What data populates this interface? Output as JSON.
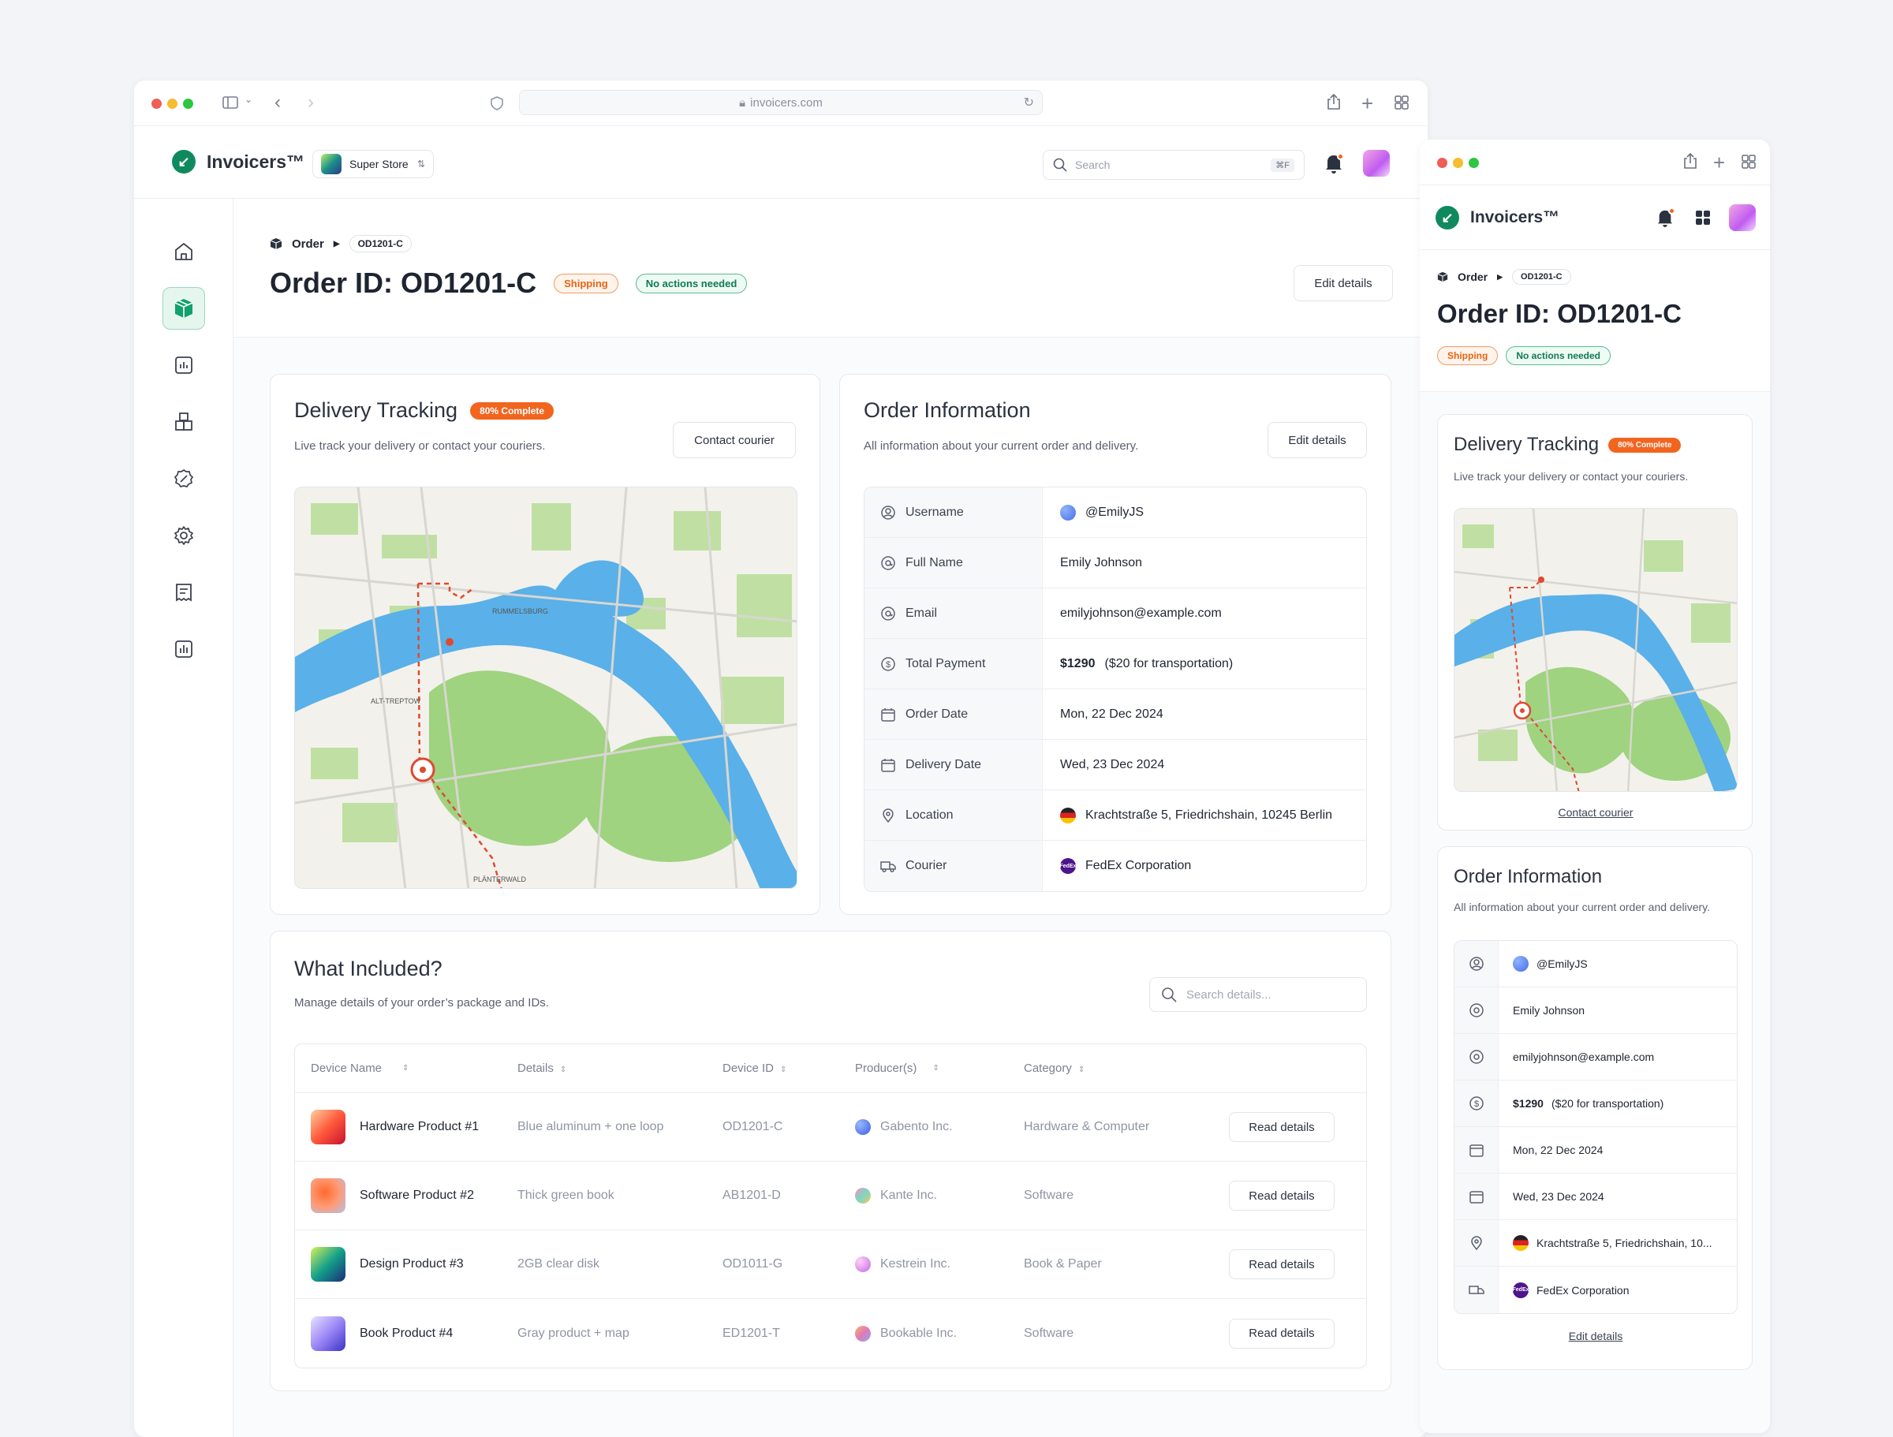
{
  "browser": {
    "url": "invoicers.com"
  },
  "app": {
    "name": "Invoicers™",
    "store": "Super Store"
  },
  "search": {
    "placeholder": "Search",
    "shortcut": "⌘F"
  },
  "breadcrumb": {
    "section": "Order",
    "id": "OD1201-C"
  },
  "order": {
    "title": "Order ID: OD1201-C",
    "status_shipping": "Shipping",
    "status_actions": "No actions needed",
    "edit_label": "Edit details"
  },
  "tracking": {
    "title": "Delivery Tracking",
    "progress_badge": "80% Complete",
    "progress": 0.8,
    "subtitle": "Live track your delivery or contact your couriers.",
    "contact_label": "Contact courier",
    "map_labels": [
      "RUMMELSBURG",
      "ALT-TREPTOW",
      "PLÄNTERWALD"
    ]
  },
  "info": {
    "title": "Order Information",
    "subtitle": "All information about your current order and delivery.",
    "edit_label": "Edit details",
    "rows": [
      {
        "label": "Username",
        "value": "@EmilyJS",
        "icon": "user-circle-icon"
      },
      {
        "label": "Full Name",
        "value": "Emily Johnson",
        "icon": "at-icon"
      },
      {
        "label": "Email",
        "value": "emilyjohnson@example.com",
        "icon": "at-icon"
      },
      {
        "label": "Total Payment",
        "value": "$1290",
        "extra": "($20 for transportation)",
        "icon": "dollar-icon"
      },
      {
        "label": "Order Date",
        "value": "Mon, 22 Dec 2024",
        "icon": "calendar-icon"
      },
      {
        "label": "Delivery Date",
        "value": "Wed, 23 Dec 2024",
        "icon": "calendar-icon"
      },
      {
        "label": "Location",
        "value": "Krachtstraße 5, Friedrichshain, 10245 Berlin",
        "short": "Krachtstraße 5, Friedrichshain, 10...",
        "icon": "pin-icon"
      },
      {
        "label": "Courier",
        "value": "FedEx Corporation",
        "icon": "truck-icon"
      }
    ]
  },
  "included": {
    "title": "What Included?",
    "subtitle": "Manage details of your order’s package and IDs.",
    "search_placeholder": "Search details...",
    "columns": [
      "Device Name",
      "Details",
      "Device ID",
      "Producer(s)",
      "Category"
    ],
    "rows": [
      {
        "name": "Hardware Product #1",
        "details": "Blue aluminum + one loop",
        "id": "OD1201-C",
        "producer": "Gabento Inc.",
        "category": "Hardware & Computer",
        "action": "Read details"
      },
      {
        "name": "Software Product #2",
        "details": "Thick green book",
        "id": "AB1201-D",
        "producer": "Kante Inc.",
        "category": "Software",
        "action": "Read details"
      },
      {
        "name": "Design Product #3",
        "details": "2GB clear disk",
        "id": "OD1011-G",
        "producer": "Kestrein Inc.",
        "category": "Book & Paper",
        "action": "Read details"
      },
      {
        "name": "Book Product #4",
        "details": "Gray product + map",
        "id": "ED1201-T",
        "producer": "Bookable Inc.",
        "category": "Software",
        "action": "Read details"
      }
    ]
  },
  "mobile": {
    "edit_link": "Edit details",
    "contact_link": "Contact courier"
  }
}
